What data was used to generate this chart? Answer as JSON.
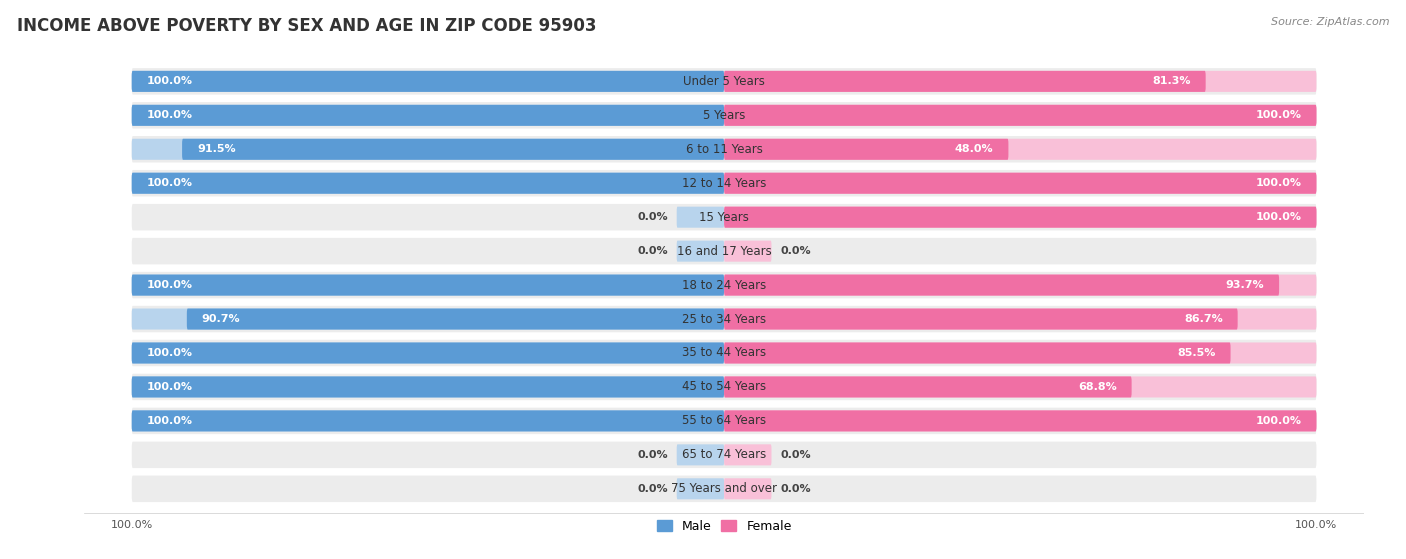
{
  "title": "INCOME ABOVE POVERTY BY SEX AND AGE IN ZIP CODE 95903",
  "source": "Source: ZipAtlas.com",
  "categories": [
    "Under 5 Years",
    "5 Years",
    "6 to 11 Years",
    "12 to 14 Years",
    "15 Years",
    "16 and 17 Years",
    "18 to 24 Years",
    "25 to 34 Years",
    "35 to 44 Years",
    "45 to 54 Years",
    "55 to 64 Years",
    "65 to 74 Years",
    "75 Years and over"
  ],
  "male_values": [
    100.0,
    100.0,
    91.5,
    100.0,
    0.0,
    0.0,
    100.0,
    90.7,
    100.0,
    100.0,
    100.0,
    0.0,
    0.0
  ],
  "female_values": [
    81.3,
    100.0,
    48.0,
    100.0,
    100.0,
    0.0,
    93.7,
    86.7,
    85.5,
    68.8,
    100.0,
    0.0,
    0.0
  ],
  "male_color": "#5b9bd5",
  "female_color": "#f06fa4",
  "male_color_light": "#b8d4ed",
  "female_color_light": "#f9c0d8",
  "male_label": "Male",
  "female_label": "Female",
  "bg_row_color": "#ececec",
  "title_fontsize": 12,
  "label_fontsize": 8.5,
  "value_fontsize": 8,
  "legend_fontsize": 9,
  "bar_height": 0.62,
  "zero_stub_pct": 8.0
}
